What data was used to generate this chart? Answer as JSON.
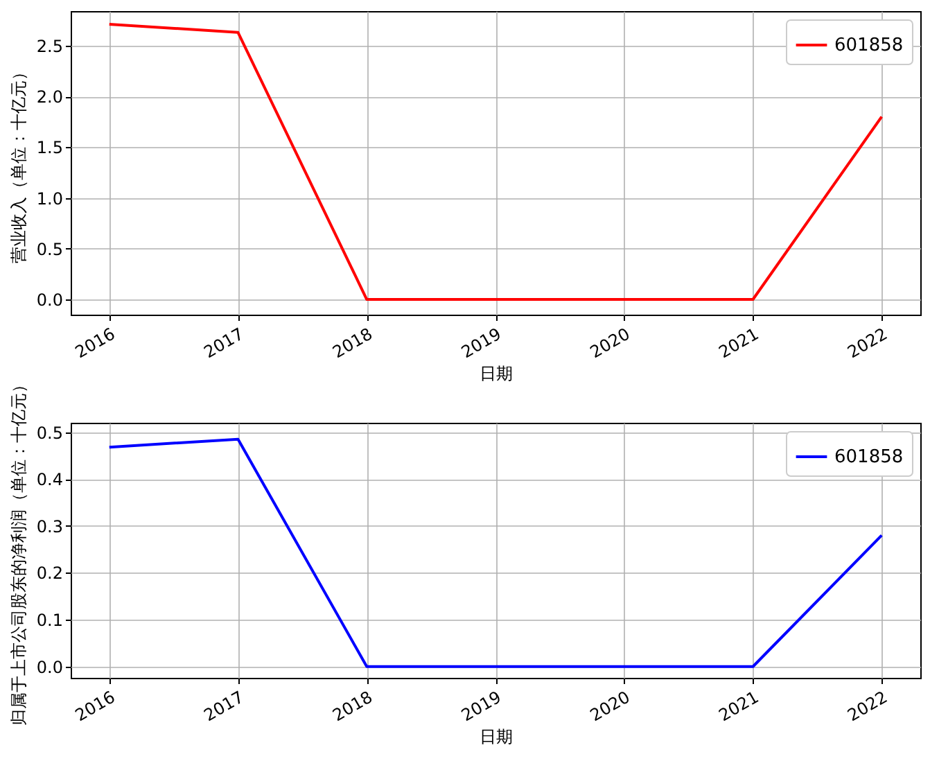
{
  "chart_data": [
    {
      "type": "line",
      "xlabel": "日期",
      "ylabel": "营业收入（单位：十亿元）",
      "x": [
        2016,
        2017,
        2018,
        2019,
        2020,
        2021,
        2022
      ],
      "series": [
        {
          "name": "601858",
          "color": "#ff0000",
          "values": [
            2.71,
            2.63,
            0,
            0,
            0,
            0,
            1.8
          ]
        }
      ],
      "xlim": [
        2015.7,
        2022.3
      ],
      "xticks": [
        2016,
        2017,
        2018,
        2019,
        2020,
        2021,
        2022
      ],
      "ylim": [
        -0.15,
        2.84
      ],
      "yticks": [
        {
          "value": 0,
          "label": "0.0"
        },
        {
          "value": 0.5,
          "label": "0.5"
        },
        {
          "value": 1,
          "label": "1.0"
        },
        {
          "value": 1.5,
          "label": "1.5"
        },
        {
          "value": 2,
          "label": "2.0"
        },
        {
          "value": 2.5,
          "label": "2.5"
        }
      ],
      "grid": true,
      "legend": "top right"
    },
    {
      "type": "line",
      "xlabel": "日期",
      "ylabel": "归属于上市公司股东的净利润（单位：十亿元）",
      "x": [
        2016,
        2017,
        2018,
        2019,
        2020,
        2021,
        2022
      ],
      "series": [
        {
          "name": "601858",
          "color": "#0000ff",
          "values": [
            0.468,
            0.485,
            0,
            0,
            0,
            0,
            0.28
          ]
        }
      ],
      "xlim": [
        2015.7,
        2022.3
      ],
      "xticks": [
        2016,
        2017,
        2018,
        2019,
        2020,
        2021,
        2022
      ],
      "ylim": [
        -0.024,
        0.52
      ],
      "yticks": [
        {
          "value": 0,
          "label": "0.0"
        },
        {
          "value": 0.1,
          "label": "0.1"
        },
        {
          "value": 0.2,
          "label": "0.2"
        },
        {
          "value": 0.3,
          "label": "0.3"
        },
        {
          "value": 0.4,
          "label": "0.4"
        },
        {
          "value": 0.5,
          "label": "0.5"
        }
      ],
      "grid": true,
      "legend": "top right"
    }
  ]
}
